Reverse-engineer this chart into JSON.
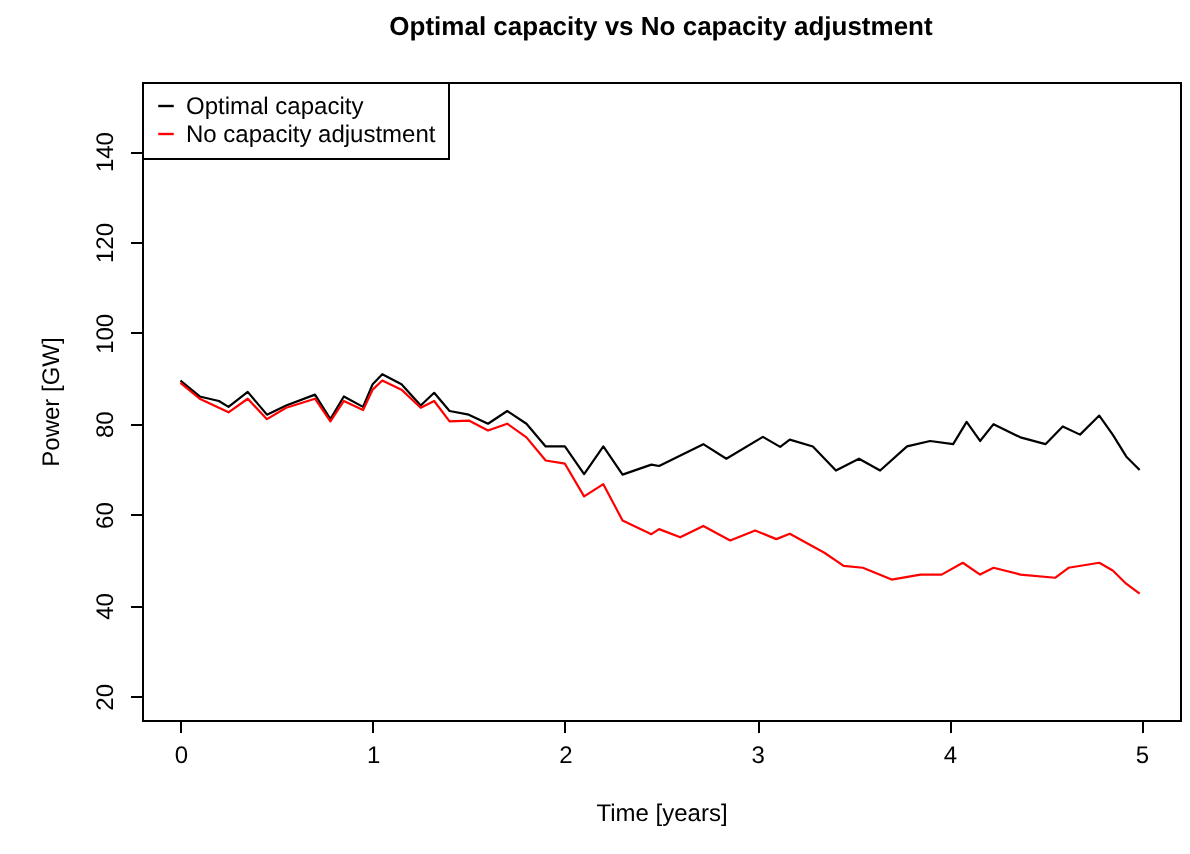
{
  "chart_data": {
    "type": "line",
    "title": "Optimal capacity vs No capacity adjustment",
    "xlabel": "Time [years]",
    "ylabel": "Power [GW]",
    "xlim": [
      -0.2,
      5.2
    ],
    "xticks": [
      0,
      1,
      2,
      3,
      4,
      5
    ],
    "ylim": [
      14.8,
      155.2
    ],
    "yticks": [
      20,
      40,
      60,
      80,
      100,
      120,
      140
    ],
    "grid": false,
    "legend": "top left",
    "line_style": "solid",
    "marker": "none",
    "series": [
      {
        "name": "Optimal capacity",
        "color": "#000000",
        "x": [
          0,
          0.1,
          0.2,
          0.25,
          0.35,
          0.45,
          0.55,
          0.7,
          0.78,
          0.85,
          0.95,
          1.0,
          1.05,
          1.15,
          1.25,
          1.32,
          1.4,
          1.5,
          1.6,
          1.7,
          1.8,
          1.9,
          2.0,
          2.1,
          2.2,
          2.3,
          2.45,
          2.49,
          2.72,
          2.84,
          3.03,
          3.12,
          3.17,
          3.29,
          3.41,
          3.53,
          3.64,
          3.78,
          3.9,
          4.02,
          4.09,
          4.16,
          4.23,
          4.37,
          4.5,
          4.59,
          4.68,
          4.78,
          4.85,
          4.92,
          4.99
        ],
        "values": [
          89.5,
          86,
          85,
          83.7,
          87,
          82,
          84,
          86.4,
          81,
          86,
          83.7,
          88.7,
          90.9,
          88.7,
          84,
          86.8,
          82.8,
          82,
          80,
          82.8,
          80,
          75,
          75,
          68.9,
          75,
          68.8,
          71,
          70.7,
          75.5,
          72.3,
          77.1,
          74.9,
          76.5,
          75,
          69.7,
          72.3,
          69.7,
          75,
          76.2,
          75.5,
          80.4,
          76.2,
          79.9,
          77,
          75.5,
          79.4,
          77.6,
          81.8,
          77.6,
          72.8,
          69.8
        ]
      },
      {
        "name": "No capacity adjustment",
        "color": "#ff0000",
        "x": [
          0,
          0.1,
          0.25,
          0.35,
          0.45,
          0.55,
          0.7,
          0.78,
          0.85,
          0.95,
          1.0,
          1.05,
          1.15,
          1.25,
          1.32,
          1.4,
          1.5,
          1.6,
          1.7,
          1.8,
          1.9,
          2.0,
          2.1,
          2.2,
          2.3,
          2.45,
          2.49,
          2.6,
          2.72,
          2.86,
          2.99,
          3.1,
          3.17,
          3.35,
          3.45,
          3.55,
          3.7,
          3.85,
          3.96,
          4.07,
          4.16,
          4.23,
          4.37,
          4.55,
          4.62,
          4.78,
          4.85,
          4.92,
          4.99
        ],
        "values": [
          89,
          85.5,
          82.5,
          85.5,
          81,
          83.5,
          85.5,
          80.5,
          85,
          83,
          87.5,
          89.5,
          87.5,
          83.5,
          85,
          80.5,
          80.7,
          78.5,
          80,
          77,
          71.9,
          71.2,
          64,
          66.7,
          58.7,
          55.7,
          56.8,
          55,
          57.5,
          54.3,
          56.5,
          54.6,
          55.8,
          51.6,
          48.7,
          48.3,
          45.7,
          46.8,
          46.8,
          49.4,
          46.8,
          48.3,
          46.8,
          46.1,
          48.3,
          49.4,
          47.7,
          44.8,
          42.6
        ]
      }
    ]
  }
}
